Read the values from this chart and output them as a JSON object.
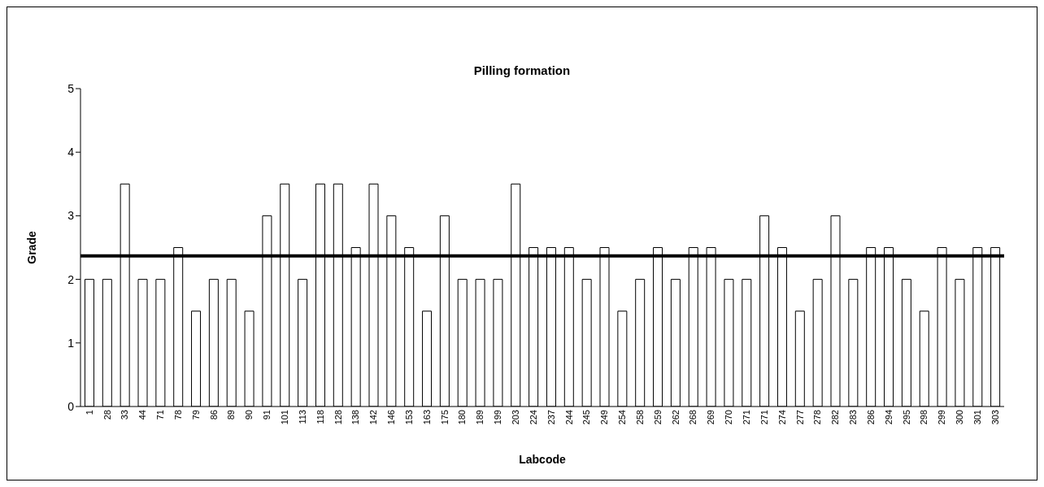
{
  "chart_data": {
    "type": "bar",
    "title": "Pilling formation",
    "xlabel": "Labcode",
    "ylabel": "Grade",
    "categories": [
      "1",
      "28",
      "33",
      "44",
      "71",
      "78",
      "79",
      "86",
      "89",
      "90",
      "91",
      "101",
      "113",
      "118",
      "128",
      "138",
      "142",
      "146",
      "153",
      "163",
      "175",
      "180",
      "189",
      "199",
      "203",
      "224",
      "237",
      "244",
      "245",
      "249",
      "254",
      "258",
      "259",
      "262",
      "268",
      "269",
      "270",
      "271",
      "271",
      "274",
      "277",
      "278",
      "282",
      "283",
      "286",
      "294",
      "295",
      "298",
      "299",
      "300",
      "301",
      "303"
    ],
    "values": [
      2,
      2,
      3.5,
      2,
      2,
      2.5,
      1.5,
      2,
      2,
      1.5,
      3,
      3.5,
      2,
      3.5,
      3.5,
      2.5,
      3.5,
      3,
      2.5,
      1.5,
      3,
      2,
      2,
      2,
      3.5,
      2.5,
      2.5,
      2.5,
      2,
      2.5,
      1.5,
      2,
      2.5,
      2,
      2.5,
      2.5,
      2,
      2,
      3,
      2.5,
      1.5,
      2,
      3,
      2,
      2.5,
      2.5,
      2,
      1.5,
      2.5,
      2,
      2.5,
      2.5
    ],
    "color": "#ffffff",
    "ylim": [
      0,
      5
    ],
    "yticks": [
      0,
      1,
      2,
      3,
      4,
      5
    ],
    "ref_lines": [
      {
        "axis": "y",
        "value": 2.37,
        "color": "#000000"
      }
    ],
    "grid": false,
    "legend": false
  }
}
